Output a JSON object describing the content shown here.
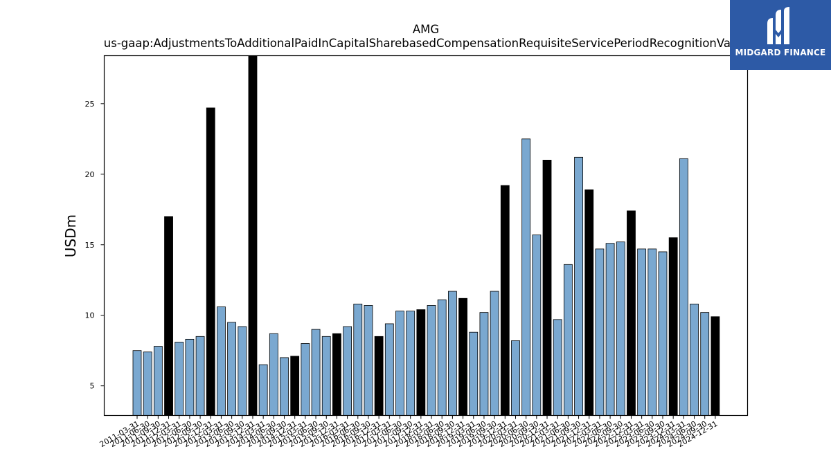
{
  "chart_data": {
    "type": "bar",
    "title": "AMG",
    "subtitle": "us-gaap:AdjustmentsToAdditionalPaidInCapitalSharebasedCompensationRequisiteServicePeriodRecognitionValue",
    "xlabel": "",
    "ylabel": "USDm",
    "ylim": [
      2.9,
      28.4
    ],
    "yticks": [
      5,
      10,
      15,
      20,
      25
    ],
    "grid": false,
    "colors": {
      "quarter": "#7aa8d0",
      "year_end": "#000000",
      "edge": "#000000"
    },
    "categories": [
      "2011-03-31",
      "2011-06-30",
      "2011-09-30",
      "2011-12-31",
      "2012-03-31",
      "2012-06-30",
      "2012-09-30",
      "2012-12-31",
      "2013-03-31",
      "2013-06-30",
      "2013-09-30",
      "2013-12-31",
      "2014-03-31",
      "2014-06-30",
      "2014-09-30",
      "2014-12-31",
      "2015-03-31",
      "2015-06-30",
      "2015-09-30",
      "2015-12-31",
      "2016-03-31",
      "2016-06-30",
      "2016-09-30",
      "2016-12-31",
      "2017-03-31",
      "2017-06-30",
      "2017-09-30",
      "2017-12-31",
      "2018-03-31",
      "2018-06-30",
      "2018-09-30",
      "2018-12-31",
      "2019-03-31",
      "2019-06-30",
      "2019-09-30",
      "2019-12-31",
      "2020-03-31",
      "2020-06-30",
      "2020-09-30",
      "2020-12-31",
      "2021-03-31",
      "2021-06-30",
      "2021-09-30",
      "2021-12-31",
      "2022-03-31",
      "2022-06-30",
      "2022-09-30",
      "2022-12-31",
      "2023-03-31",
      "2023-06-30",
      "2023-09-30",
      "2023-12-31",
      "2024-03-31",
      "2024-06-30",
      "2024-09-30",
      "2024-12-31"
    ],
    "values": [
      7.5,
      7.4,
      7.8,
      17.0,
      8.1,
      8.3,
      8.5,
      24.7,
      10.6,
      9.5,
      9.2,
      28.4,
      6.5,
      8.7,
      7.0,
      7.1,
      8.0,
      9.0,
      8.5,
      8.7,
      9.2,
      10.8,
      10.7,
      8.5,
      9.4,
      10.3,
      10.3,
      10.4,
      10.7,
      11.1,
      11.7,
      11.2,
      8.8,
      10.2,
      11.7,
      19.2,
      8.2,
      22.5,
      15.7,
      21.0,
      9.7,
      13.6,
      21.2,
      18.9,
      14.7,
      15.1,
      15.2,
      17.4,
      14.7,
      14.7,
      14.5,
      15.5,
      21.1,
      10.8,
      10.2,
      9.9
    ]
  },
  "logo": {
    "name": "MIDGARD FINANCE",
    "icon": "midgard-m-logo-icon"
  }
}
